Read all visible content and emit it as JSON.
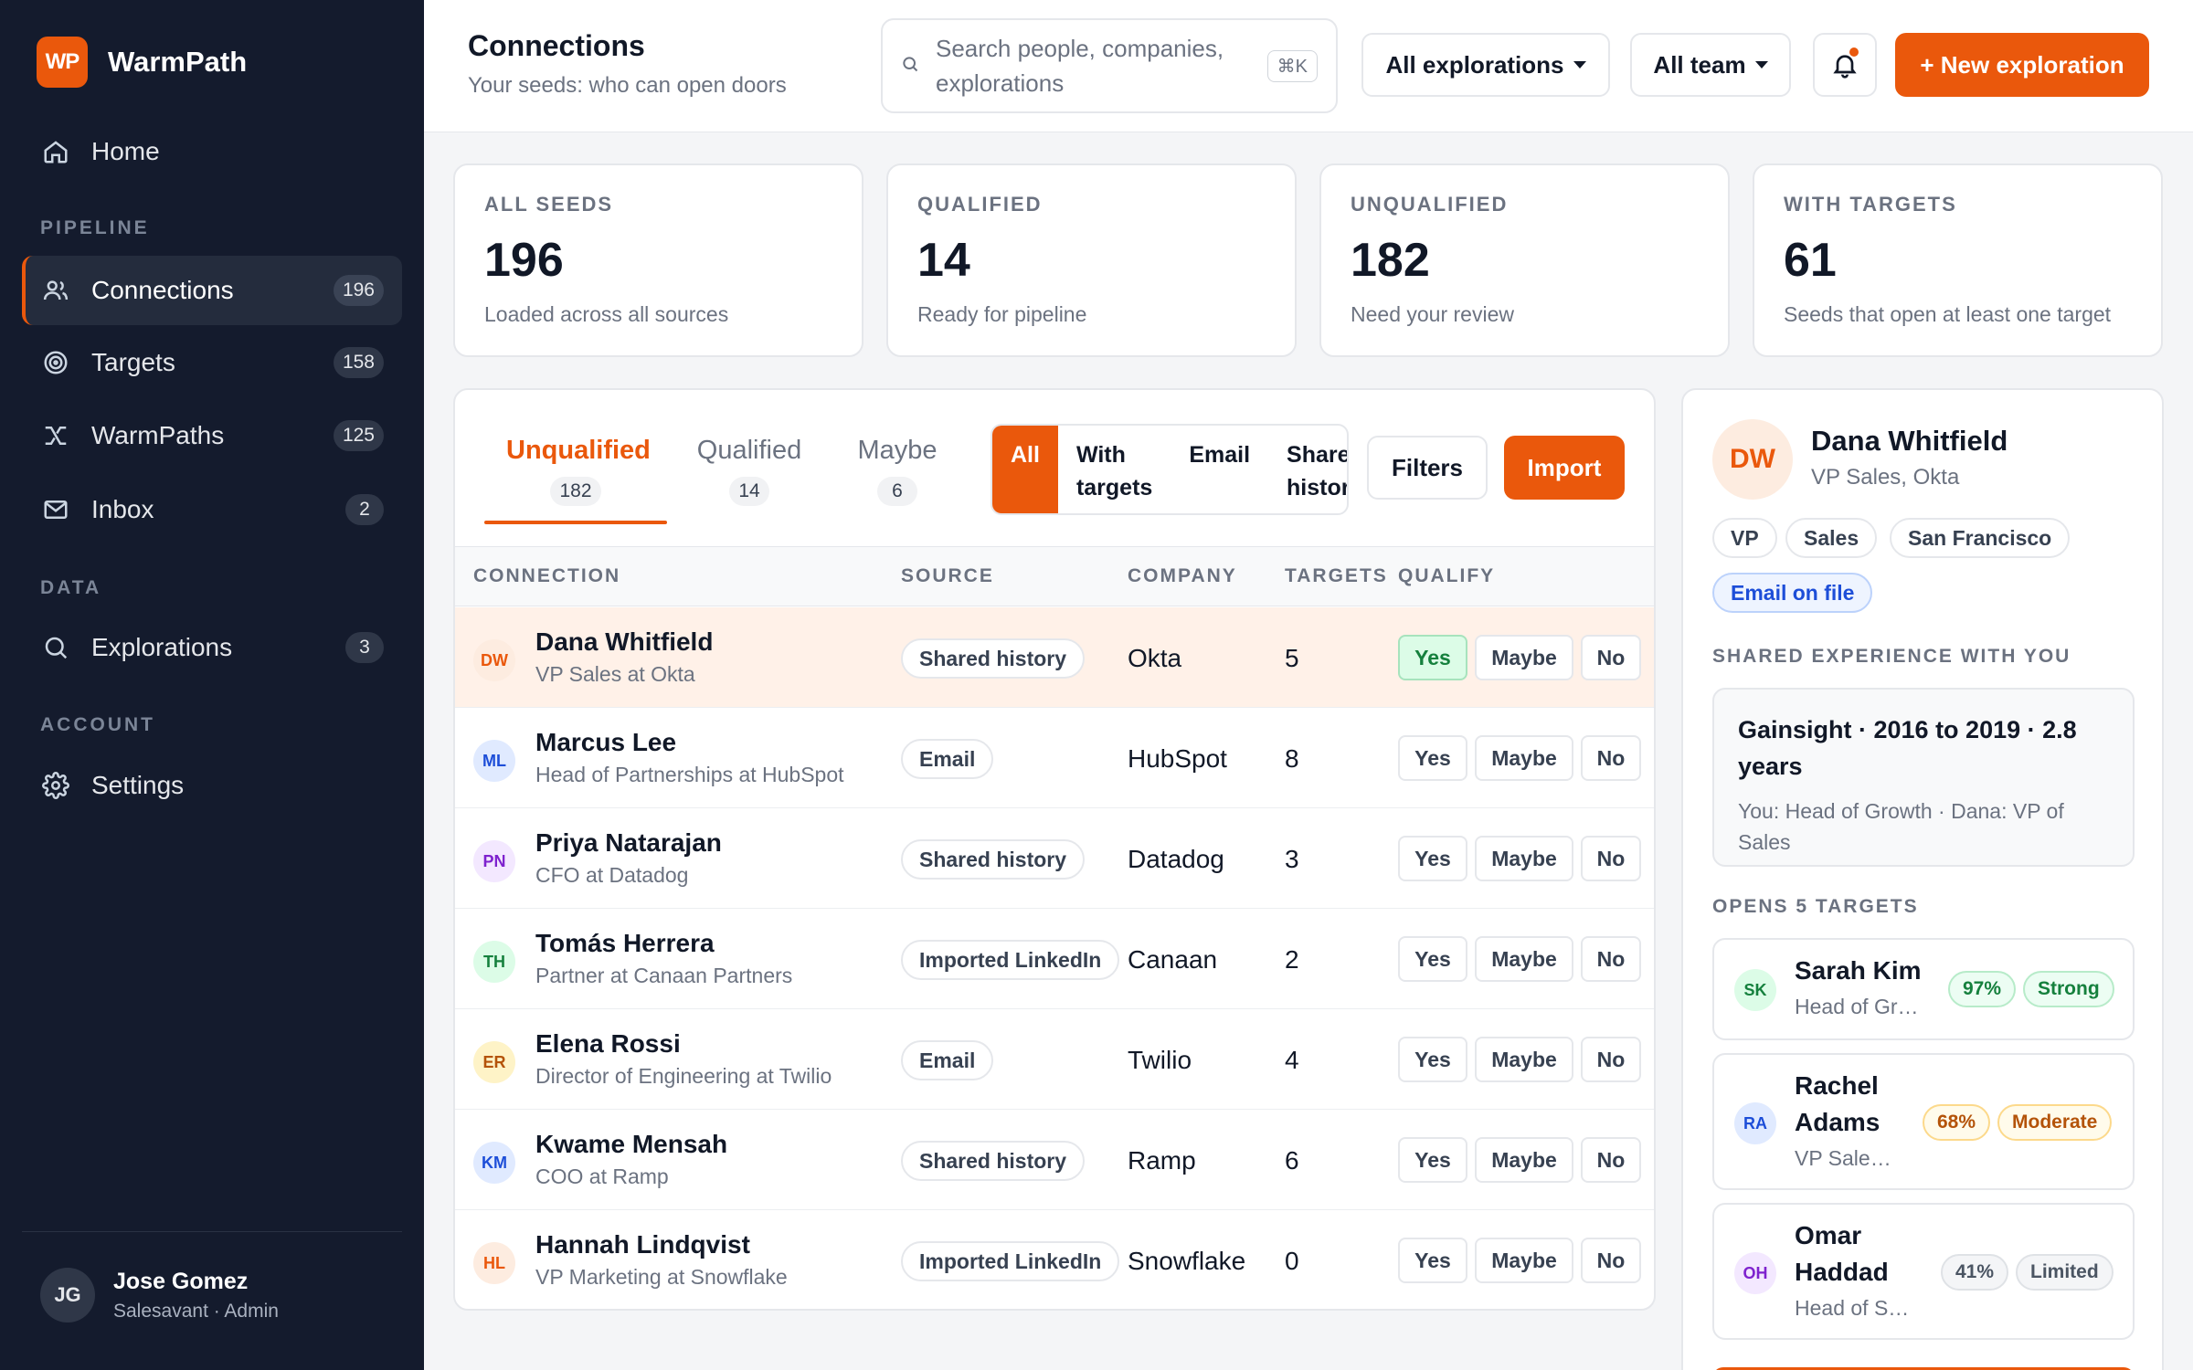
{
  "brand": {
    "logo_text": "WP",
    "name": "WarmPath"
  },
  "sidebar": {
    "home": {
      "label": "Home",
      "icon": "home-icon"
    },
    "sections": {
      "pipeline": "PIPELINE",
      "data": "DATA",
      "account": "ACCOUNT"
    },
    "items": [
      {
        "label": "Connections",
        "count": "196",
        "icon": "users-icon",
        "active": true
      },
      {
        "label": "Targets",
        "count": "158",
        "icon": "target-icon"
      },
      {
        "label": "WarmPaths",
        "count": "125",
        "icon": "path-icon"
      },
      {
        "label": "Inbox",
        "count": "2",
        "icon": "mail-icon"
      },
      {
        "label": "Explorations",
        "count": "3",
        "icon": "search-icon"
      },
      {
        "label": "Settings",
        "icon": "gear-icon"
      }
    ],
    "user": {
      "initials": "JG",
      "name": "Jose Gomez",
      "role": "Salesavant · Admin"
    }
  },
  "header": {
    "title": "Connections",
    "subtitle": "Your seeds: who can open doors",
    "search_placeholder": "Search people, companies, explorations",
    "search_shortcut": "⌘K",
    "explorations_filter": "All explorations",
    "team_filter": "All team",
    "new_button": "+ New exploration"
  },
  "stats": [
    {
      "label": "ALL SEEDS",
      "value": "196",
      "desc": "Loaded across all sources"
    },
    {
      "label": "QUALIFIED",
      "value": "14",
      "desc": "Ready for pipeline"
    },
    {
      "label": "UNQUALIFIED",
      "value": "182",
      "desc": "Need your review"
    },
    {
      "label": "WITH TARGETS",
      "value": "61",
      "desc": "Seeds that open at least one target"
    }
  ],
  "table": {
    "tabs": [
      {
        "label": "Unqualified",
        "count": "182",
        "active": true
      },
      {
        "label": "Qualified",
        "count": "14"
      },
      {
        "label": "Maybe",
        "count": "6"
      }
    ],
    "segments": [
      "All",
      "With targets",
      "Email",
      "Shared history"
    ],
    "filters_button": "Filters",
    "import_button": "Import",
    "columns": {
      "connection": "CONNECTION",
      "source": "SOURCE",
      "company": "COMPANY",
      "targets": "TARGETS",
      "qualify": "QUALIFY"
    },
    "qualify_labels": {
      "yes": "Yes",
      "maybe": "Maybe",
      "no": "No"
    },
    "rows": [
      {
        "initials": "DW",
        "name": "Dana Whitfield",
        "title": "VP Sales at Okta",
        "source": "Shared history",
        "company": "Okta",
        "targets": "5",
        "avatar_bg": "#fdece0",
        "avatar_fg": "#ea580c",
        "selected": true,
        "qualify": "yes"
      },
      {
        "initials": "ML",
        "name": "Marcus Lee",
        "title": "Head of Partnerships at HubSpot",
        "source": "Email",
        "company": "HubSpot",
        "targets": "8",
        "avatar_bg": "#e0eaff",
        "avatar_fg": "#1d4ed8"
      },
      {
        "initials": "PN",
        "name": "Priya Natarajan",
        "title": "CFO at Datadog",
        "source": "Shared history",
        "company": "Datadog",
        "targets": "3",
        "avatar_bg": "#f3e8ff",
        "avatar_fg": "#7e22ce"
      },
      {
        "initials": "TH",
        "name": "Tomás Herrera",
        "title": "Partner at Canaan Partners",
        "source": "Imported LinkedIn",
        "company": "Canaan",
        "targets": "2",
        "avatar_bg": "#dcfce7",
        "avatar_fg": "#15803d"
      },
      {
        "initials": "ER",
        "name": "Elena Rossi",
        "title": "Director of Engineering at Twilio",
        "source": "Email",
        "company": "Twilio",
        "targets": "4",
        "avatar_bg": "#fef3c7",
        "avatar_fg": "#b45309"
      },
      {
        "initials": "KM",
        "name": "Kwame Mensah",
        "title": "COO at Ramp",
        "source": "Shared history",
        "company": "Ramp",
        "targets": "6",
        "avatar_bg": "#e0eaff",
        "avatar_fg": "#1d4ed8"
      },
      {
        "initials": "HL",
        "name": "Hannah Lindqvist",
        "title": "VP Marketing at Snowflake",
        "source": "Imported LinkedIn",
        "company": "Snowflake",
        "targets": "0",
        "avatar_bg": "#fdece0",
        "avatar_fg": "#ea580c"
      }
    ]
  },
  "detail": {
    "initials": "DW",
    "name": "Dana Whitfield",
    "role": "VP Sales, Okta",
    "tags": [
      "VP",
      "Sales",
      "San Francisco"
    ],
    "email_tag": "Email on file",
    "shared_label": "SHARED EXPERIENCE WITH YOU",
    "shared_title": "Gainsight · 2016 to 2019 · 2.8 years",
    "shared_sub": "You: Head of Growth · Dana: VP of Sales",
    "targets_label": "OPENS 5 TARGETS",
    "targets": [
      {
        "initials": "SK",
        "name": "Sarah Kim",
        "role": "Head of Gr…",
        "pct": "97%",
        "strength": "Strong",
        "tone": "g",
        "avatar_bg": "#dcfce7",
        "avatar_fg": "#15803d"
      },
      {
        "initials": "RA",
        "name": "Rachel Adams",
        "role": "VP Sale…",
        "pct": "68%",
        "strength": "Moderate",
        "tone": "y",
        "avatar_bg": "#e0eaff",
        "avatar_fg": "#1d4ed8"
      },
      {
        "initials": "OH",
        "name": "Omar Haddad",
        "role": "Head of S…",
        "pct": "41%",
        "strength": "Limited",
        "tone": "n",
        "avatar_bg": "#f3e8ff",
        "avatar_fg": "#7e22ce"
      }
    ]
  },
  "colors": {
    "accent": "#ea580c",
    "sidebar_bg": "#141b2d"
  }
}
